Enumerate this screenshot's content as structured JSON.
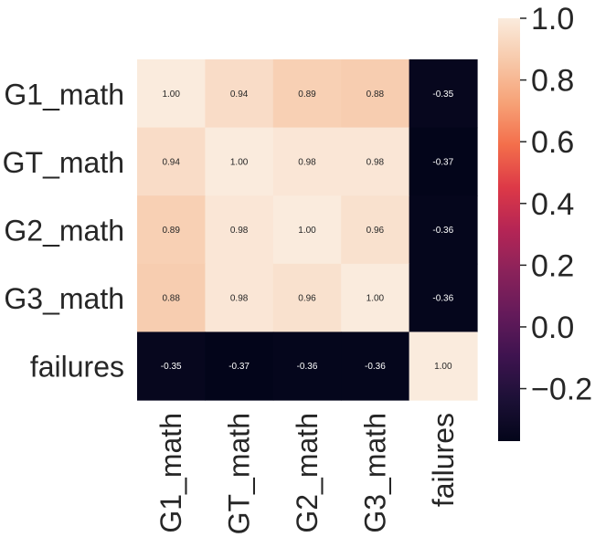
{
  "chart_data": {
    "type": "heatmap",
    "title": "",
    "rows": [
      "G1_math",
      "GT_math",
      "G2_math",
      "G3_math",
      "failures"
    ],
    "columns": [
      "G1_math",
      "GT_math",
      "G2_math",
      "G3_math",
      "failures"
    ],
    "values": [
      [
        1.0,
        0.94,
        0.89,
        0.88,
        -0.35
      ],
      [
        0.94,
        1.0,
        0.98,
        0.98,
        -0.37
      ],
      [
        0.89,
        0.98,
        1.0,
        0.96,
        -0.36
      ],
      [
        0.88,
        0.98,
        0.96,
        1.0,
        -0.36
      ],
      [
        -0.35,
        -0.37,
        -0.36,
        -0.36,
        1.0
      ]
    ],
    "annotations": [
      [
        "1.00",
        "0.94",
        "0.89",
        "0.88",
        "-0.35"
      ],
      [
        "0.94",
        "1.00",
        "0.98",
        "0.98",
        "-0.37"
      ],
      [
        "0.89",
        "0.98",
        "1.00",
        "0.96",
        "-0.36"
      ],
      [
        "0.88",
        "0.98",
        "0.96",
        "1.00",
        "-0.36"
      ],
      [
        "-0.35",
        "-0.37",
        "-0.36",
        "-0.36",
        "1.00"
      ]
    ],
    "colormap": "rocket",
    "vmin": -0.37,
    "vmax": 1.0,
    "colorbar": {
      "ticks": [
        1.0,
        0.8,
        0.6,
        0.4,
        0.2,
        0.0,
        -0.2
      ],
      "tick_labels": [
        "1.0",
        "0.8",
        "0.6",
        "0.4",
        "0.2",
        "0.0",
        "−0.2"
      ],
      "placement": "right"
    },
    "grid": false
  }
}
